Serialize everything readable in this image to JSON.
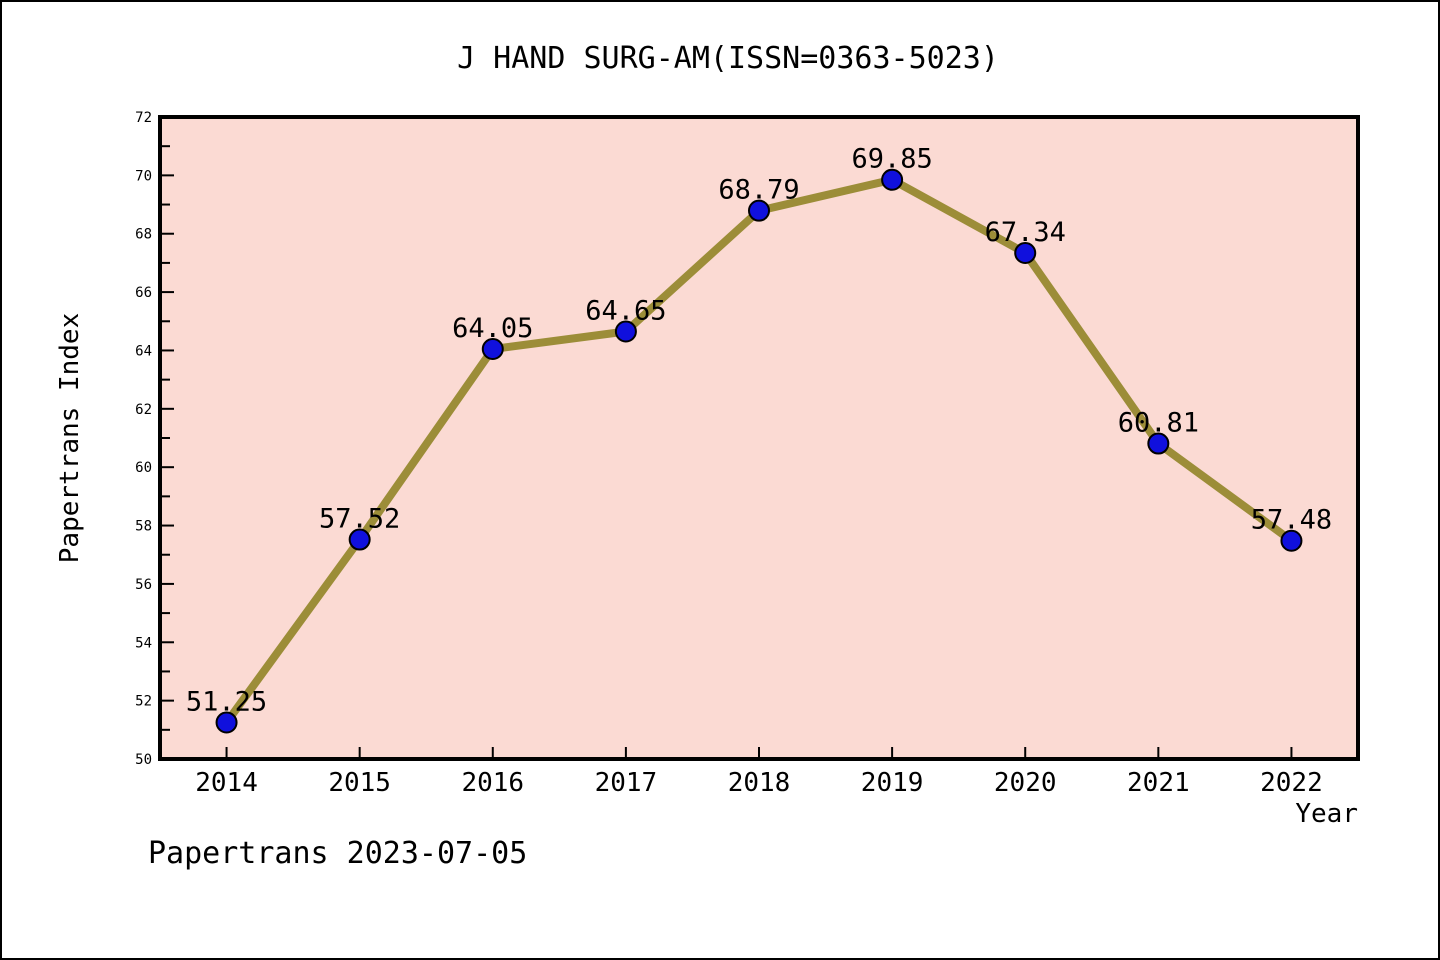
{
  "title": "J HAND SURG-AM(ISSN=0363-5023)",
  "footer": "Papertrans 2023-07-05",
  "chart_data": {
    "type": "line",
    "title": "J HAND SURG-AM(ISSN=0363-5023)",
    "xlabel": "Year",
    "ylabel": "Papertrans Index",
    "x": [
      2014,
      2015,
      2016,
      2017,
      2018,
      2019,
      2020,
      2021,
      2022
    ],
    "values": [
      51.25,
      57.52,
      64.05,
      64.65,
      68.79,
      69.85,
      67.34,
      60.81,
      57.48
    ],
    "point_labels": [
      "51.25",
      "57.52",
      "64.05",
      "64.65",
      "68.79",
      "69.85",
      "67.34",
      "60.81",
      "57.48"
    ],
    "xlim": [
      2013.5,
      2022.5
    ],
    "ylim": [
      50,
      72
    ],
    "ytick_major_step": 2,
    "ytick_minor_step": 1,
    "grid": false,
    "legend": null,
    "annotation": "Papertrans 2023-07-05",
    "colors": {
      "page_bg": "#ffffff",
      "plot_bg": "#fbdad3",
      "plot_border": "#000000",
      "line": "#9c8d38",
      "marker_fill": "#1010dd",
      "marker_edge": "#000000",
      "text": "#000000"
    }
  }
}
